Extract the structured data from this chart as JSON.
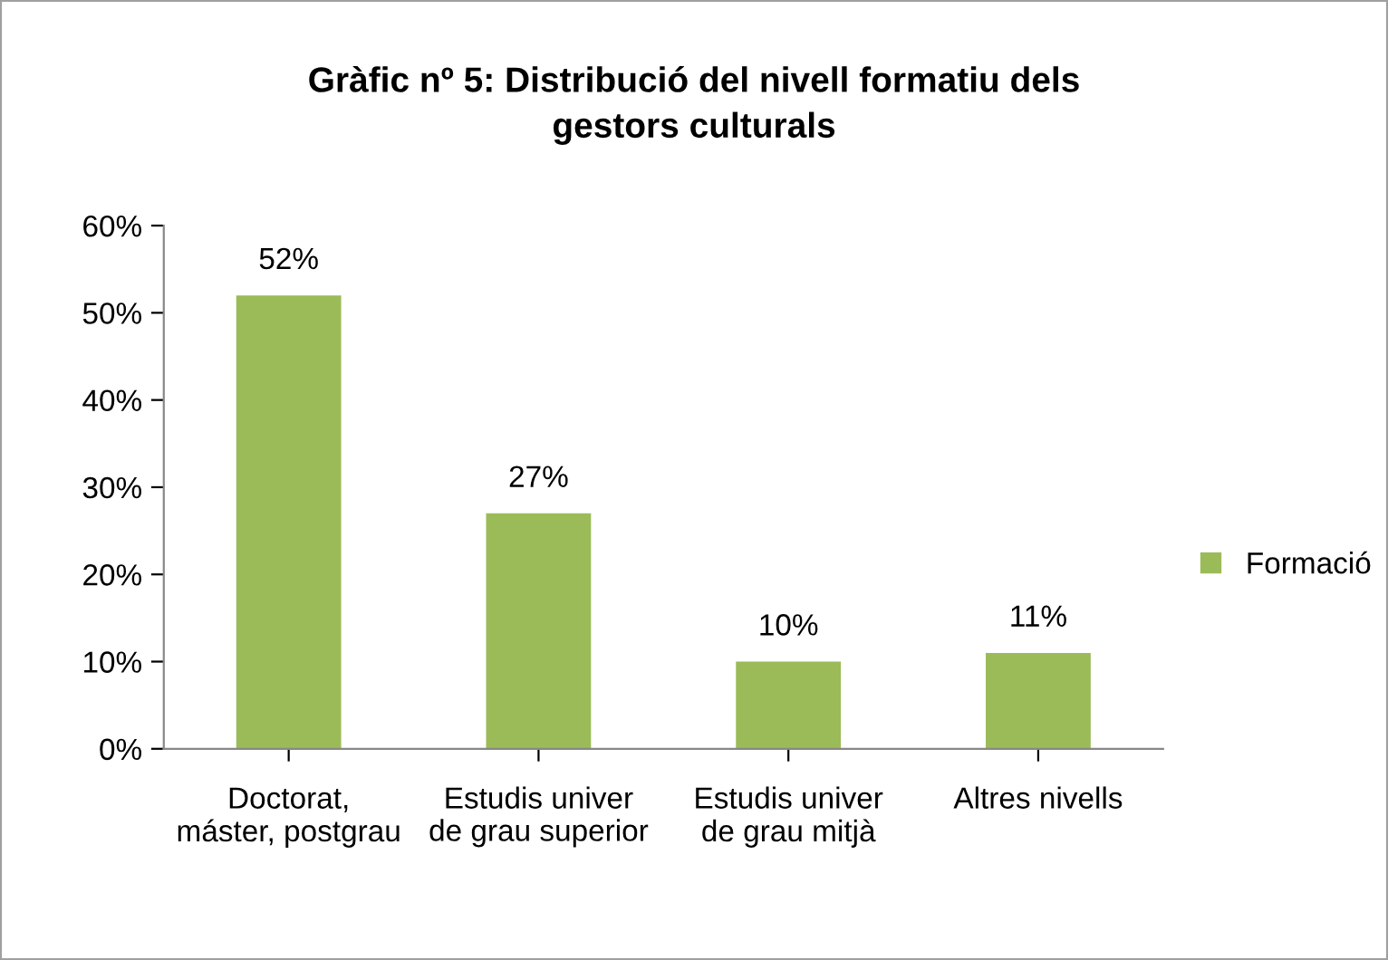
{
  "chart_data": {
    "type": "bar",
    "title": "Gràfic nº 5: Distribució del nivell formatiu dels gestors culturals",
    "categories": [
      "Doctorat, máster, postgrau",
      "Estudis univer de grau superior",
      "Estudis univer de grau mitjà",
      "Altres nivells"
    ],
    "series": [
      {
        "name": "Formació",
        "color": "#9bbb59",
        "values": [
          52,
          27,
          10,
          11
        ],
        "value_labels": [
          "52%",
          "27%",
          "10%",
          "11%"
        ]
      }
    ],
    "ylim": [
      0,
      60
    ],
    "yticks": [
      {
        "value": 0,
        "label": "0%"
      },
      {
        "value": 10,
        "label": "10%"
      },
      {
        "value": 20,
        "label": "20%"
      },
      {
        "value": 30,
        "label": "30%"
      },
      {
        "value": 40,
        "label": "40%"
      },
      {
        "value": 50,
        "label": "50%"
      },
      {
        "value": 60,
        "label": "60%"
      }
    ],
    "legend": "right",
    "grid": false
  }
}
